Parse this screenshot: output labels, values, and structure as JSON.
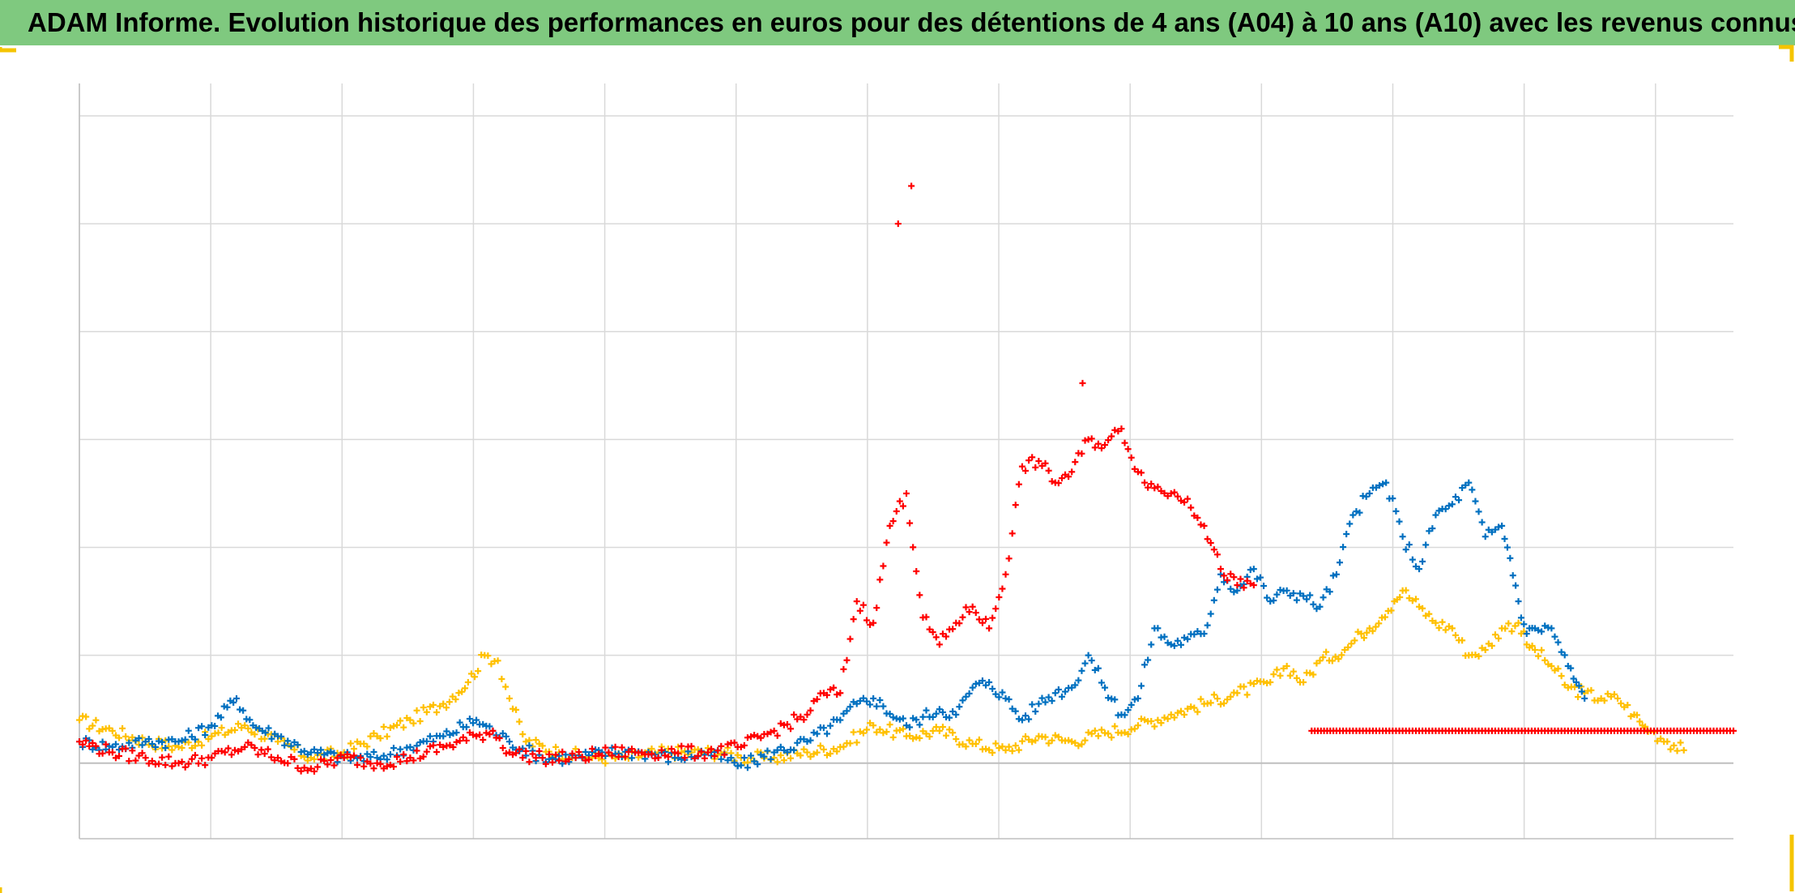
{
  "title": "ADAM Informe. Evolution historique des performances en euros pour des détentions de 4 ans (A04) à 10 ans (A10) avec les revenus connus distribués",
  "colors": {
    "title_bg": "#7fc97f",
    "frame": "#f5c400",
    "grid": "#d9d9d9",
    "axis": "#bfbfbf"
  },
  "chart_data": {
    "type": "scatter",
    "title": "ADAM Informe. Evolution historique des performances en euros pour des détentions de 4 ans (A04) à 10 ans (A10) avec les revenus connus distribués",
    "xlabel": "",
    "ylabel": "",
    "marker": "plus",
    "grid": true,
    "legend": "none",
    "xlim": [
      0,
      100
    ],
    "ylim": [
      -0.7,
      6.3
    ],
    "x_gridlines": 12,
    "y_gridlines": [
      0,
      1,
      2,
      3,
      4,
      5,
      6
    ],
    "series": [
      {
        "color": "#ffc000",
        "points": [
          [
            0,
            0.4
          ],
          [
            2,
            0.3
          ],
          [
            4,
            0.2
          ],
          [
            6,
            0.15
          ],
          [
            8,
            0.25
          ],
          [
            10,
            0.35
          ],
          [
            12,
            0.2
          ],
          [
            14,
            0.05
          ],
          [
            16,
            0.1
          ],
          [
            18,
            0.25
          ],
          [
            20,
            0.4
          ],
          [
            22,
            0.55
          ],
          [
            23.5,
            0.75
          ],
          [
            24.5,
            1.0
          ],
          [
            25.3,
            0.95
          ],
          [
            26,
            0.6
          ],
          [
            27,
            0.2
          ],
          [
            29,
            0.1
          ],
          [
            31,
            0.05
          ],
          [
            33,
            0.05
          ],
          [
            35,
            0.1
          ],
          [
            37,
            0.1
          ],
          [
            39,
            0.1
          ],
          [
            40,
            0.05
          ],
          [
            42,
            0.05
          ],
          [
            44,
            0.1
          ],
          [
            46,
            0.15
          ],
          [
            48,
            0.35
          ],
          [
            50,
            0.25
          ],
          [
            52,
            0.3
          ],
          [
            54,
            0.18
          ],
          [
            56,
            0.12
          ],
          [
            58,
            0.25
          ],
          [
            60,
            0.2
          ],
          [
            62,
            0.28
          ],
          [
            64,
            0.35
          ],
          [
            66,
            0.45
          ],
          [
            68,
            0.55
          ],
          [
            70,
            0.65
          ],
          [
            72,
            0.75
          ],
          [
            73,
            0.9
          ],
          [
            74,
            0.75
          ],
          [
            75,
            0.95
          ],
          [
            76.5,
            1.05
          ],
          [
            77.5,
            1.2
          ],
          [
            78,
            1.25
          ],
          [
            79.5,
            1.5
          ],
          [
            80,
            1.6
          ],
          [
            81,
            1.45
          ],
          [
            82,
            1.3
          ],
          [
            83,
            1.25
          ],
          [
            84,
            1.0
          ],
          [
            85,
            1.05
          ],
          [
            86,
            1.25
          ],
          [
            87,
            1.3
          ],
          [
            87.5,
            1.1
          ],
          [
            88,
            1.05
          ],
          [
            89,
            0.9
          ],
          [
            90,
            0.7
          ],
          [
            91,
            0.65
          ],
          [
            92,
            0.6
          ],
          [
            93,
            0.6
          ],
          [
            94,
            0.45
          ],
          [
            94.5,
            0.35
          ],
          [
            95,
            0.3
          ],
          [
            96,
            0.2
          ],
          [
            97,
            0.12
          ]
        ]
      },
      {
        "color": "#0070c0",
        "points": [
          [
            0,
            0.2
          ],
          [
            2,
            0.15
          ],
          [
            4,
            0.2
          ],
          [
            6,
            0.2
          ],
          [
            8,
            0.35
          ],
          [
            9.5,
            0.6
          ],
          [
            10.5,
            0.35
          ],
          [
            12,
            0.25
          ],
          [
            14,
            0.1
          ],
          [
            16,
            0.05
          ],
          [
            18,
            0.05
          ],
          [
            20,
            0.15
          ],
          [
            22,
            0.25
          ],
          [
            24,
            0.4
          ],
          [
            25,
            0.3
          ],
          [
            26,
            0.2
          ],
          [
            28,
            0.05
          ],
          [
            30,
            0.05
          ],
          [
            32,
            0.1
          ],
          [
            34,
            0.1
          ],
          [
            36,
            0.05
          ],
          [
            38,
            0.1
          ],
          [
            40,
            -0.02
          ],
          [
            42,
            0.1
          ],
          [
            44,
            0.2
          ],
          [
            46,
            0.4
          ],
          [
            47,
            0.55
          ],
          [
            48,
            0.6
          ],
          [
            50,
            0.35
          ],
          [
            52,
            0.5
          ],
          [
            53,
            0.45
          ],
          [
            54,
            0.7
          ],
          [
            55,
            0.75
          ],
          [
            56,
            0.6
          ],
          [
            57,
            0.4
          ],
          [
            58,
            0.55
          ],
          [
            59,
            0.65
          ],
          [
            60,
            0.7
          ],
          [
            61,
            1.0
          ],
          [
            62,
            0.7
          ],
          [
            63,
            0.45
          ],
          [
            64,
            0.6
          ],
          [
            65,
            1.25
          ],
          [
            66,
            1.1
          ],
          [
            67,
            1.15
          ],
          [
            68,
            1.2
          ],
          [
            69,
            1.75
          ],
          [
            70,
            1.6
          ],
          [
            71,
            1.8
          ],
          [
            72,
            1.5
          ],
          [
            73,
            1.6
          ],
          [
            74,
            1.55
          ],
          [
            75,
            1.45
          ],
          [
            76,
            1.75
          ],
          [
            77,
            2.3
          ],
          [
            78,
            2.5
          ],
          [
            79,
            2.6
          ],
          [
            80,
            2.1
          ],
          [
            81,
            1.8
          ],
          [
            82,
            2.3
          ],
          [
            83,
            2.4
          ],
          [
            84,
            2.6
          ],
          [
            85,
            2.1
          ],
          [
            86,
            2.2
          ],
          [
            86.5,
            1.9
          ],
          [
            87,
            1.5
          ],
          [
            87.5,
            1.2
          ],
          [
            88,
            1.25
          ],
          [
            89,
            1.25
          ],
          [
            90,
            0.9
          ],
          [
            90.5,
            0.75
          ],
          [
            91,
            0.6
          ]
        ]
      },
      {
        "color": "#ff0000",
        "points": [
          [
            0,
            0.2
          ],
          [
            2,
            0.1
          ],
          [
            4,
            0.05
          ],
          [
            6,
            0.0
          ],
          [
            8,
            0.05
          ],
          [
            10,
            0.15
          ],
          [
            12,
            0.05
          ],
          [
            14,
            -0.05
          ],
          [
            16,
            0.05
          ],
          [
            18,
            0.0
          ],
          [
            20,
            0.05
          ],
          [
            22,
            0.15
          ],
          [
            24,
            0.25
          ],
          [
            25,
            0.3
          ],
          [
            26,
            0.1
          ],
          [
            28,
            0.05
          ],
          [
            30,
            0.05
          ],
          [
            32,
            0.1
          ],
          [
            34,
            0.1
          ],
          [
            36,
            0.1
          ],
          [
            38,
            0.1
          ],
          [
            40,
            0.15
          ],
          [
            42,
            0.3
          ],
          [
            44,
            0.45
          ],
          [
            45,
            0.65
          ],
          [
            46,
            0.65
          ],
          [
            47,
            1.5
          ],
          [
            48,
            1.3
          ],
          [
            49,
            2.2
          ],
          [
            50,
            2.5
          ],
          [
            51,
            1.35
          ],
          [
            52,
            1.1
          ],
          [
            53,
            1.3
          ],
          [
            54,
            1.45
          ],
          [
            55,
            1.25
          ],
          [
            56,
            1.75
          ],
          [
            57,
            2.75
          ],
          [
            58,
            2.8
          ],
          [
            59,
            2.6
          ],
          [
            60,
            2.7
          ],
          [
            61,
            3.0
          ],
          [
            62,
            2.95
          ],
          [
            63,
            3.1
          ],
          [
            64,
            2.7
          ],
          [
            65,
            2.55
          ],
          [
            66,
            2.5
          ],
          [
            67,
            2.45
          ],
          [
            68,
            2.2
          ],
          [
            69,
            1.8
          ],
          [
            70,
            1.65
          ],
          [
            71,
            1.65
          ],
          [
            49.5,
            5.0
          ],
          [
            50.3,
            5.35
          ]
        ]
      },
      {
        "color": "#ff0000",
        "points": [
          [
            74.5,
            0.3
          ],
          [
            76,
            0.3
          ],
          [
            78,
            0.3
          ],
          [
            80,
            0.3
          ],
          [
            82,
            0.3
          ],
          [
            84,
            0.3
          ],
          [
            86,
            0.3
          ],
          [
            88,
            0.3
          ],
          [
            90,
            0.3
          ],
          [
            92,
            0.3
          ],
          [
            94,
            0.3
          ],
          [
            96,
            0.3
          ],
          [
            98,
            0.3
          ],
          [
            100,
            0.3
          ]
        ]
      }
    ]
  }
}
